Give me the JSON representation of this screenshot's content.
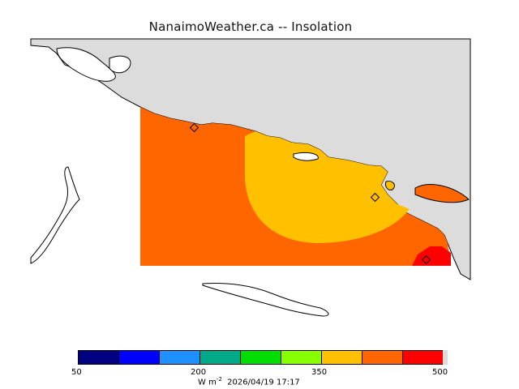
{
  "title": "NanaimoWeather.ca  --  Insolation",
  "legend": {
    "colors": [
      "#000080",
      "#0000ff",
      "#1e90ff",
      "#00aa88",
      "#00dd00",
      "#88ff00",
      "#ffc000",
      "#ff6600",
      "#ff0000"
    ],
    "ticks": [
      "50",
      "200",
      "350",
      "500"
    ],
    "units_text": "W m",
    "units_exp": "-2",
    "timestamp": "2026/04/19 17:17"
  },
  "map": {
    "land_color": "#dcdcdc",
    "field_colors": {
      "low": "#ff6600",
      "mid": "#ffc000",
      "high": "#ff0000"
    },
    "station_markers": 3
  }
}
